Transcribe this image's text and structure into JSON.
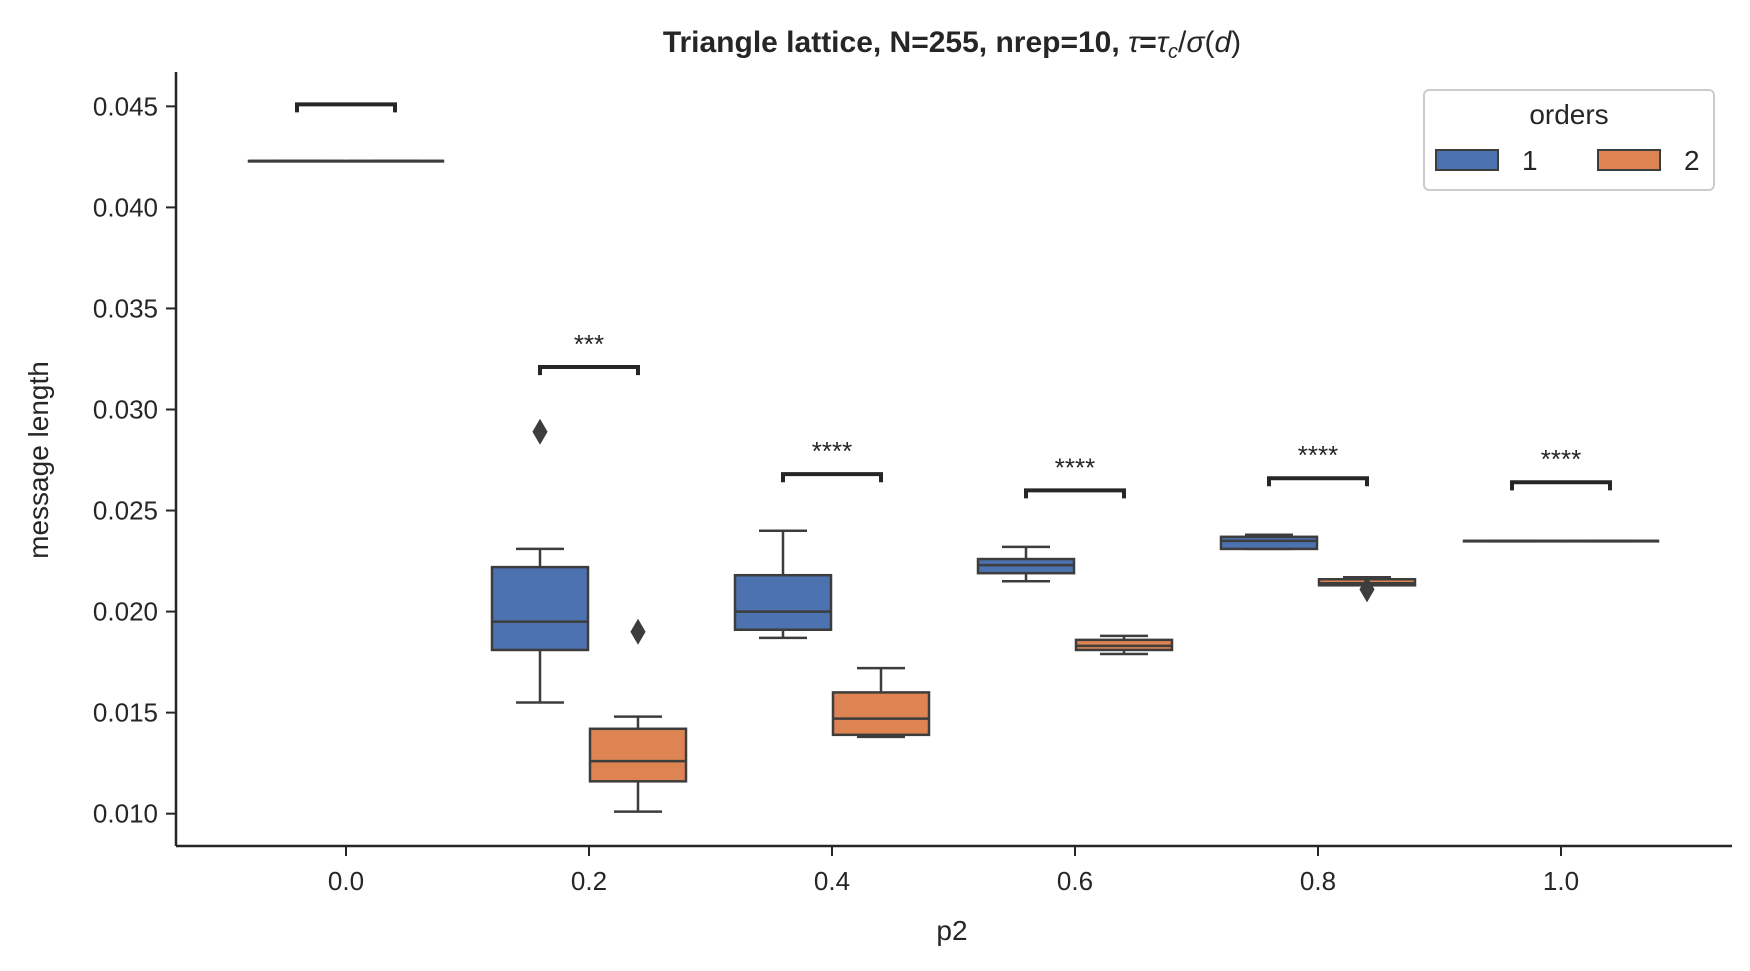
{
  "chart_data": {
    "type": "box",
    "title": "Triangle lattice, N=255, nrep=10, τ=τ_c/σ(d)",
    "title_parts": {
      "plain": "Triangle lattice, N=255, nrep=10, ",
      "tau": "τ",
      "equals": "=",
      "tau_c": "τ",
      "sub_c": "c",
      "slash": "/",
      "sigma": "σ",
      "open_paren": "(",
      "d": "d",
      "close_paren": ")"
    },
    "xlabel": "p2",
    "ylabel": "message length",
    "categories": [
      "0.0",
      "0.2",
      "0.4",
      "0.6",
      "0.8",
      "1.0"
    ],
    "ylim": [
      0.0084,
      0.0467
    ],
    "yticks": [
      0.01,
      0.015,
      0.02,
      0.025,
      0.03,
      0.035,
      0.04,
      0.045
    ],
    "ytick_labels": [
      "0.010",
      "0.015",
      "0.020",
      "0.025",
      "0.030",
      "0.035",
      "0.040",
      "0.045"
    ],
    "legend": {
      "title": "orders",
      "position": "top-right",
      "entries": [
        {
          "label": "1",
          "color": "#4c72b0"
        },
        {
          "label": "2",
          "color": "#dd8452"
        }
      ]
    },
    "series": [
      {
        "name": "1",
        "color": "#4c72b0",
        "boxes": [
          {
            "category": "0.0",
            "whislo": 0.0423,
            "q1": 0.0423,
            "median": 0.0423,
            "q3": 0.0423,
            "whishi": 0.0423,
            "fliers": []
          },
          {
            "category": "0.2",
            "whislo": 0.0155,
            "q1": 0.0181,
            "median": 0.0195,
            "q3": 0.0222,
            "whishi": 0.0231,
            "fliers": [
              0.0289
            ]
          },
          {
            "category": "0.4",
            "whislo": 0.0187,
            "q1": 0.0191,
            "median": 0.02,
            "q3": 0.0218,
            "whishi": 0.024,
            "fliers": []
          },
          {
            "category": "0.6",
            "whislo": 0.0215,
            "q1": 0.0219,
            "median": 0.0223,
            "q3": 0.0226,
            "whishi": 0.0232,
            "fliers": []
          },
          {
            "category": "0.8",
            "whislo": 0.0231,
            "q1": 0.0231,
            "median": 0.0235,
            "q3": 0.0237,
            "whishi": 0.0238,
            "fliers": []
          },
          {
            "category": "1.0",
            "whislo": 0.0235,
            "q1": 0.0235,
            "median": 0.0235,
            "q3": 0.0235,
            "whishi": 0.0235,
            "fliers": []
          }
        ]
      },
      {
        "name": "2",
        "color": "#dd8452",
        "boxes": [
          {
            "category": "0.0",
            "whislo": 0.0423,
            "q1": 0.0423,
            "median": 0.0423,
            "q3": 0.0423,
            "whishi": 0.0423,
            "fliers": []
          },
          {
            "category": "0.2",
            "whislo": 0.0101,
            "q1": 0.0116,
            "median": 0.0126,
            "q3": 0.0142,
            "whishi": 0.0148,
            "fliers": [
              0.019
            ]
          },
          {
            "category": "0.4",
            "whislo": 0.0138,
            "q1": 0.0139,
            "median": 0.0147,
            "q3": 0.016,
            "whishi": 0.0172,
            "fliers": []
          },
          {
            "category": "0.6",
            "whislo": 0.0179,
            "q1": 0.0181,
            "median": 0.0183,
            "q3": 0.0186,
            "whishi": 0.0188,
            "fliers": []
          },
          {
            "category": "0.8",
            "whislo": 0.0213,
            "q1": 0.0213,
            "median": 0.0214,
            "q3": 0.0216,
            "whishi": 0.0217,
            "fliers": [
              0.0211
            ]
          },
          {
            "category": "1.0",
            "whislo": 0.0235,
            "q1": 0.0235,
            "median": 0.0235,
            "q3": 0.0235,
            "whishi": 0.0235,
            "fliers": []
          }
        ]
      }
    ],
    "annotations": [
      {
        "category": "0.0",
        "text": "",
        "bracket_y": 0.0451,
        "tip_y": 0.0447
      },
      {
        "category": "0.2",
        "text": "***",
        "bracket_y": 0.0321,
        "tip_y": 0.0317
      },
      {
        "category": "0.4",
        "text": "****",
        "bracket_y": 0.0268,
        "tip_y": 0.0264
      },
      {
        "category": "0.6",
        "text": "****",
        "bracket_y": 0.026,
        "tip_y": 0.0256
      },
      {
        "category": "0.8",
        "text": "****",
        "bracket_y": 0.0266,
        "tip_y": 0.0262
      },
      {
        "category": "1.0",
        "text": "****",
        "bracket_y": 0.0264,
        "tip_y": 0.026
      }
    ]
  }
}
